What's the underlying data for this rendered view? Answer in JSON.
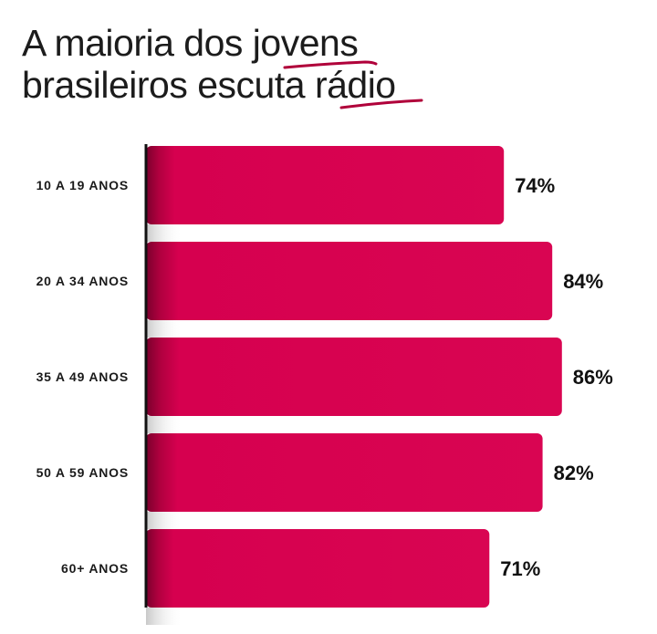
{
  "chart_data": {
    "type": "bar",
    "orientation": "horizontal",
    "title_line1": "A maioria dos jovens",
    "title_line2": "brasileiros escuta rádio",
    "title_parts": {
      "line1_plain": "A maioria dos ",
      "line1_emph": "jovens",
      "line2_plain": "brasileiros escuta ",
      "line2_emph": "rádio"
    },
    "categories": [
      "10 A 19 ANOS",
      "20 A 34 ANOS",
      "35 A 49 ANOS",
      "50 A 59 ANOS",
      "60+ ANOS"
    ],
    "values": [
      74,
      84,
      86,
      82,
      71
    ],
    "value_labels": [
      "74%",
      "84%",
      "86%",
      "82%",
      "71%"
    ],
    "unit": "%",
    "xlim": [
      0,
      100
    ],
    "xlabel": "",
    "ylabel": "",
    "grid": false,
    "legend": "none",
    "colors": {
      "bar": "#d6004f",
      "bar_dark": "#7a002c",
      "axis": "#111111",
      "underline": "#b0003a",
      "title": "#1c1c1c"
    }
  }
}
